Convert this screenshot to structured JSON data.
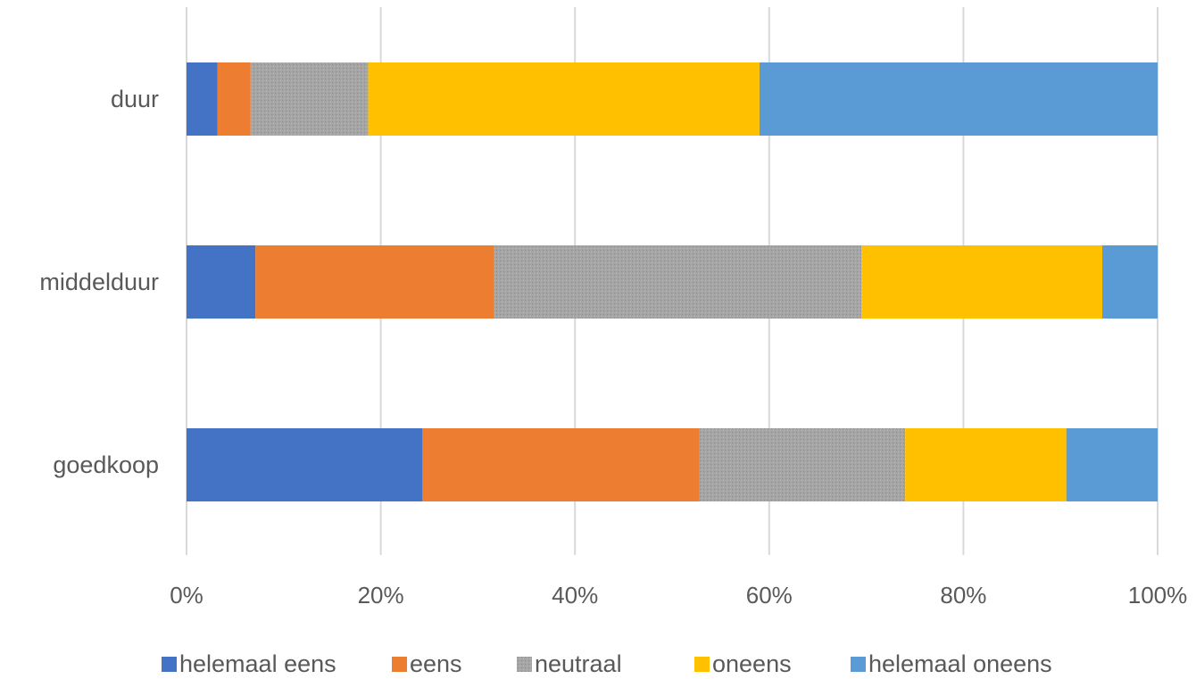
{
  "chart_data": {
    "type": "bar",
    "orientation": "horizontal",
    "stacking": "percent",
    "categories": [
      "duur",
      "middelduur",
      "goedkoop"
    ],
    "series": [
      {
        "name": "helemaal eens",
        "color": "#4472C4",
        "values": [
          3.2,
          7.1,
          24.3
        ]
      },
      {
        "name": "eens",
        "color": "#ED7D31",
        "values": [
          3.4,
          24.6,
          28.5
        ]
      },
      {
        "name": "neutraal",
        "color": "#A5A5A5",
        "pattern": "dotted-fill",
        "values": [
          12.1,
          37.8,
          21.2
        ]
      },
      {
        "name": "oneens",
        "color": "#FFC000",
        "values": [
          40.3,
          24.8,
          16.6
        ]
      },
      {
        "name": "helemaal oneens",
        "color": "#5B9BD5",
        "values": [
          41.0,
          5.7,
          9.4
        ]
      }
    ],
    "xlim": [
      0,
      100
    ],
    "xticks": [
      "0%",
      "20%",
      "40%",
      "60%",
      "80%",
      "100%"
    ],
    "grid": true,
    "legend_position": "bottom"
  }
}
